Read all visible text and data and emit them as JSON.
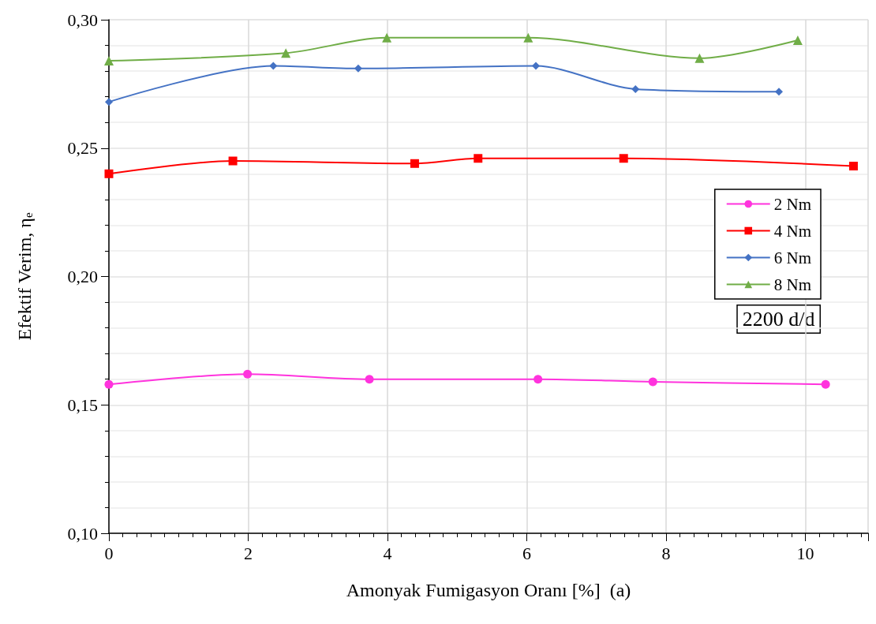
{
  "chart_data": {
    "type": "line",
    "xlabel": "Amonyak Fumigasyon Oranı [%]  (a)",
    "ylabel": "Efektif Verim, η$_{e}$",
    "xlim": [
      0,
      10.9
    ],
    "xticks": [
      0,
      2,
      4,
      6,
      8,
      10
    ],
    "ylim": [
      0.1,
      0.3
    ],
    "yticks": [
      {
        "value": 0.1,
        "label": "0,10"
      },
      {
        "value": 0.15,
        "label": "0,15"
      },
      {
        "value": 0.2,
        "label": "0,20"
      },
      {
        "value": 0.25,
        "label": "0,25"
      },
      {
        "value": 0.3,
        "label": "0,30"
      }
    ],
    "grid": true,
    "legend": "right",
    "line_style": "solid",
    "annotations": [
      "2200 d/d"
    ],
    "series": [
      {
        "name": "2 Nm",
        "color": "#ff33dd",
        "marker": "circle",
        "x": [
          0,
          1.99,
          3.74,
          6.16,
          7.81,
          10.29
        ],
        "values": [
          0.158,
          0.162,
          0.16,
          0.16,
          0.159,
          0.158
        ]
      },
      {
        "name": "4 Nm",
        "color": "#ff0000",
        "marker": "square",
        "x": [
          0,
          1.78,
          4.39,
          5.3,
          7.39,
          10.69
        ],
        "values": [
          0.24,
          0.245,
          0.244,
          0.246,
          0.246,
          0.243
        ]
      },
      {
        "name": "6 Nm",
        "color": "#4472c4",
        "marker": "diamond",
        "x": [
          0,
          2.36,
          3.58,
          6.13,
          7.56,
          9.62
        ],
        "values": [
          0.268,
          0.282,
          0.281,
          0.282,
          0.273,
          0.272
        ]
      },
      {
        "name": "8 Nm",
        "color": "#70ad47",
        "marker": "triangle",
        "x": [
          0,
          2.54,
          3.99,
          6.02,
          8.48,
          9.89
        ],
        "values": [
          0.284,
          0.287,
          0.293,
          0.293,
          0.285,
          0.292
        ]
      }
    ]
  }
}
